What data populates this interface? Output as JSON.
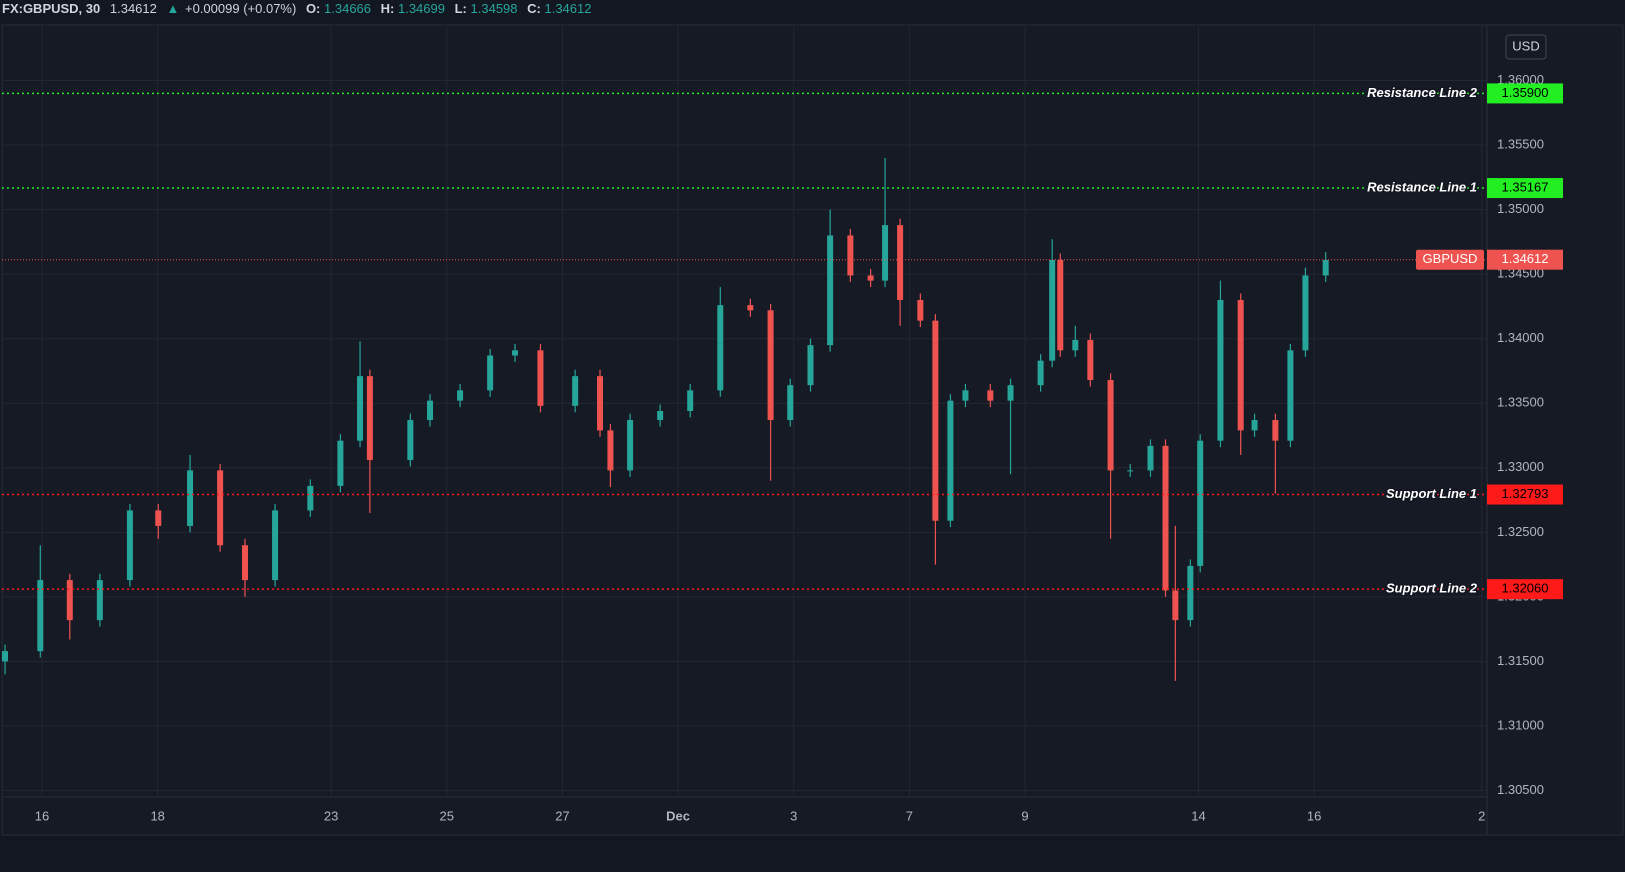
{
  "chart_data": {
    "type": "candlestick",
    "header": {
      "symbol": "FX:GBPUSD, 30",
      "last": "1.34612",
      "change": "+0.00099 (+0.07%)",
      "o_label": "O:",
      "o": "1.34666",
      "h_label": "H:",
      "h": "1.34699",
      "l_label": "L:",
      "l": "1.34598",
      "c_label": "C:",
      "c": "1.34612"
    },
    "currency": "USD",
    "up_color": "#26a69a",
    "down_color": "#ef5350",
    "grid": true,
    "x": [
      -0.64,
      -0.03,
      0.48,
      1.0,
      1.52,
      2.01,
      2.56,
      3.08,
      3.51,
      4.03,
      4.64,
      5.16,
      5.5,
      5.67,
      6.37,
      6.71,
      7.23,
      7.75,
      8.18,
      8.62,
      9.22,
      9.65,
      9.83,
      10.17,
      10.69,
      11.21,
      11.73,
      12.25,
      12.6,
      12.94,
      13.29,
      13.63,
      13.98,
      14.33,
      14.58,
      14.84,
      15.19,
      15.45,
      15.71,
      15.97,
      16.4,
      16.75,
      17.27,
      17.47,
      17.61,
      17.87,
      18.13,
      18.48,
      18.82,
      19.17,
      19.43,
      19.6,
      19.86,
      20.03,
      20.38,
      20.73,
      20.97,
      21.33,
      21.59,
      21.85,
      22.2
    ],
    "open": [
      1.315,
      1.3158,
      1.3213,
      1.3182,
      1.3213,
      1.3267,
      1.3255,
      1.3298,
      1.324,
      1.3213,
      1.3267,
      1.3286,
      1.3321,
      1.3371,
      1.3306,
      1.3337,
      1.3352,
      1.336,
      1.3387,
      1.3391,
      1.3348,
      1.3371,
      1.3329,
      1.3298,
      1.3337,
      1.3344,
      1.336,
      1.3426,
      1.3422,
      1.3337,
      1.3364,
      1.3395,
      1.348,
      1.3449,
      1.3445,
      1.3488,
      1.343,
      1.3414,
      1.3259,
      1.3352,
      1.336,
      1.3352,
      1.3364,
      1.3383,
      1.3461,
      1.3391,
      1.3399,
      1.3368,
      1.3298,
      1.3298,
      1.3317,
      1.3205,
      1.3182,
      1.3224,
      1.3321,
      1.343,
      1.3329,
      1.3337,
      1.3321,
      1.3391,
      1.3449
    ],
    "high": [
      1.3163,
      1.324,
      1.3218,
      1.3218,
      1.3272,
      1.3272,
      1.331,
      1.3303,
      1.3245,
      1.3272,
      1.3291,
      1.3326,
      1.3398,
      1.3376,
      1.3342,
      1.3357,
      1.3365,
      1.3392,
      1.3396,
      1.3396,
      1.3376,
      1.3376,
      1.3334,
      1.3342,
      1.3349,
      1.3365,
      1.344,
      1.3431,
      1.3427,
      1.3369,
      1.34,
      1.35,
      1.3485,
      1.3454,
      1.354,
      1.3493,
      1.3435,
      1.3419,
      1.3357,
      1.3365,
      1.3365,
      1.3369,
      1.3388,
      1.3477,
      1.3466,
      1.341,
      1.3404,
      1.3373,
      1.3303,
      1.3322,
      1.3322,
      1.3255,
      1.3229,
      1.3326,
      1.3445,
      1.3435,
      1.3342,
      1.3342,
      1.3396,
      1.3455,
      1.3467
    ],
    "low": [
      1.314,
      1.3153,
      1.3167,
      1.3177,
      1.3208,
      1.3245,
      1.325,
      1.3235,
      1.32,
      1.3208,
      1.3262,
      1.3281,
      1.3316,
      1.3265,
      1.3301,
      1.3332,
      1.3347,
      1.3355,
      1.3382,
      1.3343,
      1.3343,
      1.3324,
      1.3285,
      1.3293,
      1.3332,
      1.3339,
      1.3355,
      1.3417,
      1.329,
      1.3332,
      1.3359,
      1.339,
      1.3444,
      1.344,
      1.344,
      1.341,
      1.3409,
      1.3225,
      1.3254,
      1.3347,
      1.3347,
      1.3295,
      1.3359,
      1.3378,
      1.3386,
      1.3386,
      1.3363,
      1.3245,
      1.3293,
      1.3293,
      1.32,
      1.3135,
      1.3177,
      1.3219,
      1.3316,
      1.331,
      1.3324,
      1.328,
      1.3316,
      1.3386,
      1.3444
    ],
    "close": [
      1.3158,
      1.3213,
      1.3182,
      1.3213,
      1.3267,
      1.3255,
      1.3298,
      1.324,
      1.3213,
      1.3267,
      1.3286,
      1.3321,
      1.3371,
      1.3306,
      1.3337,
      1.3352,
      1.336,
      1.3387,
      1.3391,
      1.3348,
      1.3371,
      1.3329,
      1.3298,
      1.3337,
      1.3344,
      1.336,
      1.3426,
      1.3422,
      1.3337,
      1.3364,
      1.3395,
      1.348,
      1.3449,
      1.3445,
      1.3488,
      1.343,
      1.3414,
      1.3259,
      1.3352,
      1.336,
      1.3352,
      1.3364,
      1.3383,
      1.3461,
      1.3391,
      1.3399,
      1.3368,
      1.3298,
      1.3298,
      1.3317,
      1.3205,
      1.3182,
      1.3224,
      1.3321,
      1.343,
      1.3329,
      1.3337,
      1.3321,
      1.3391,
      1.3449,
      1.3461
    ],
    "xlim": [
      -0.727,
      24.99
    ],
    "xticks": [
      {
        "value": 0,
        "label": "16"
      },
      {
        "value": 2,
        "label": "18"
      },
      {
        "value": 5,
        "label": "23"
      },
      {
        "value": 7,
        "label": "25"
      },
      {
        "value": 9,
        "label": "27"
      },
      {
        "value": 11,
        "label": "Dec"
      },
      {
        "value": 13,
        "label": "3"
      },
      {
        "value": 15,
        "label": "7"
      },
      {
        "value": 17,
        "label": "9"
      },
      {
        "value": 20,
        "label": "14"
      },
      {
        "value": 22,
        "label": "16"
      },
      {
        "value": 24.9,
        "label": "2"
      }
    ],
    "ylim": [
      1.3045,
      1.3643
    ],
    "yticks": [
      {
        "value": 1.305,
        "label": "1.30500"
      },
      {
        "value": 1.31,
        "label": "1.31000"
      },
      {
        "value": 1.315,
        "label": "1.31500"
      },
      {
        "value": 1.32,
        "label": "1.32000"
      },
      {
        "value": 1.325,
        "label": "1.32500"
      },
      {
        "value": 1.33,
        "label": "1.33000"
      },
      {
        "value": 1.335,
        "label": "1.33500"
      },
      {
        "value": 1.34,
        "label": "1.34000"
      },
      {
        "value": 1.345,
        "label": "1.34500"
      },
      {
        "value": 1.35,
        "label": "1.35000"
      },
      {
        "value": 1.355,
        "label": "1.35500"
      },
      {
        "value": 1.36,
        "label": "1.36000"
      }
    ],
    "levels": [
      {
        "name": "Resistance Line 2",
        "price": {
          "value": 1.359,
          "label": "1.35900"
        },
        "color": "#22ee22"
      },
      {
        "name": "Resistance Line 1",
        "price": {
          "value": 1.35167,
          "label": "1.35167"
        },
        "color": "#22ee22"
      },
      {
        "name": "Support Line 1",
        "price": {
          "value": 1.32793,
          "label": "1.32793"
        },
        "color": "#ff1a1a"
      },
      {
        "name": "Support Line 2",
        "price": {
          "value": 1.3206,
          "label": "1.32060"
        },
        "color": "#ff1a1a"
      }
    ],
    "last_price": {
      "name": "GBPUSD",
      "price": {
        "value": 1.34612,
        "label": "1.34612"
      },
      "color": "#ef5350"
    }
  }
}
